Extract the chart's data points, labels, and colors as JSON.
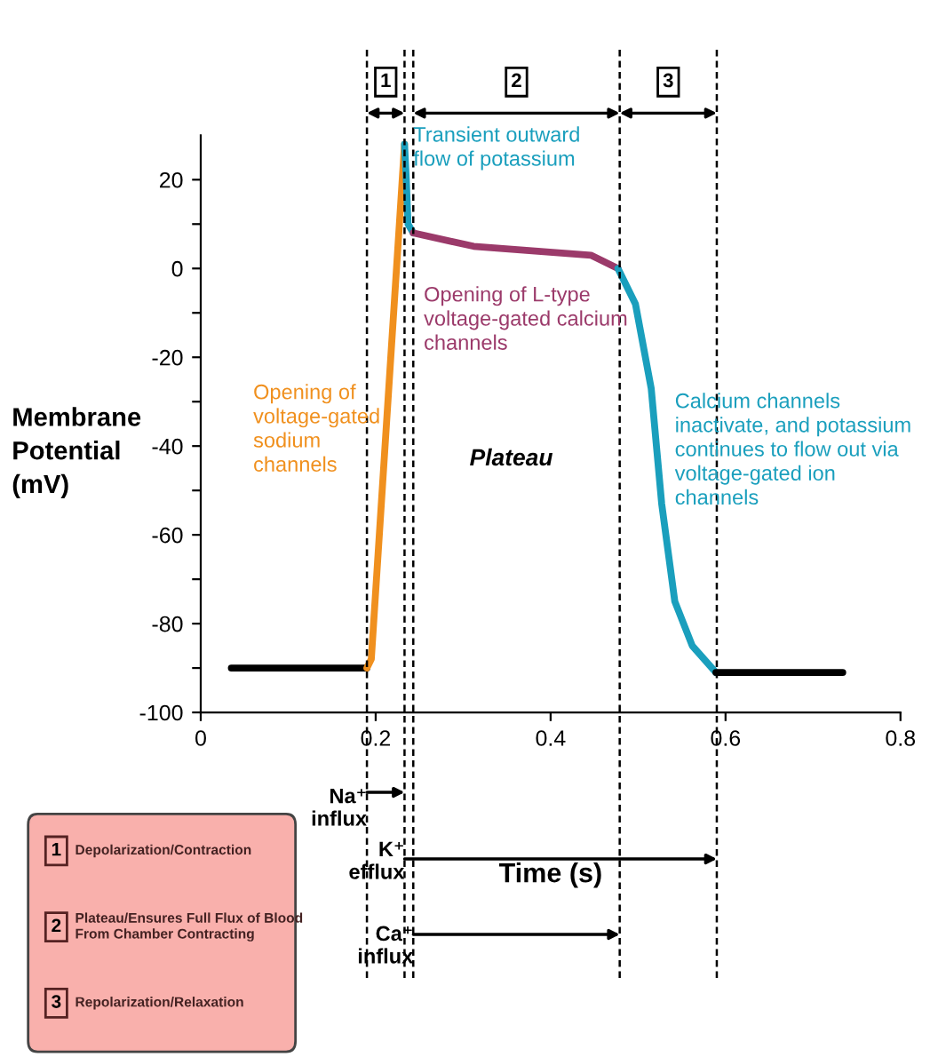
{
  "chart_data": {
    "type": "line",
    "xlabel": "Time (s)",
    "ylabel": "Membrane\nPotential\n(mV)",
    "xlim": [
      0,
      0.8
    ],
    "xticks": [
      0,
      0.2,
      0.4,
      0.6,
      0.8
    ],
    "ylim": [
      -100,
      30
    ],
    "yticks": [
      -100,
      {
        "value": -90,
        "label": null
      },
      -80,
      {
        "value": -70,
        "label": null
      },
      -60,
      {
        "value": -50,
        "label": null
      },
      -40,
      {
        "value": -30,
        "label": null
      },
      -20,
      {
        "value": -10,
        "label": null
      },
      0,
      {
        "value": 10,
        "label": null
      },
      20
    ],
    "series": [
      {
        "color": "#000000",
        "x": [
          0.035,
          0.19
        ],
        "values": [
          -90,
          -90
        ]
      },
      {
        "color": "#f0901e",
        "x": [
          0.19,
          0.195,
          0.233
        ],
        "values": [
          -90,
          -88,
          28
        ]
      },
      {
        "color": "#1a9fbd",
        "x": [
          0.233,
          0.235,
          0.237,
          0.243
        ],
        "values": [
          28,
          20,
          10,
          8
        ]
      },
      {
        "color": "#9b3a6a",
        "x": [
          0.243,
          0.312,
          0.379,
          0.446,
          0.477
        ],
        "values": [
          8,
          5,
          4,
          3,
          0
        ]
      },
      {
        "color": "#1a9fbd",
        "x": [
          0.477,
          0.497,
          0.515,
          0.527,
          0.542,
          0.562,
          0.589
        ],
        "values": [
          0,
          -8,
          -27,
          -53,
          -75,
          -85,
          -91
        ]
      },
      {
        "color": "#000000",
        "x": [
          0.589,
          0.734
        ],
        "values": [
          -91,
          -91
        ]
      }
    ],
    "ref_lines": [
      {
        "axis": "x",
        "value": 0.19,
        "line_style": "dashed"
      },
      {
        "axis": "x",
        "value": 0.233,
        "line_style": "dashed"
      },
      {
        "axis": "x",
        "value": 0.243,
        "line_style": "dashed"
      },
      {
        "axis": "x",
        "value": 0.479,
        "line_style": "dashed"
      },
      {
        "axis": "x",
        "value": 0.59,
        "line_style": "dashed"
      }
    ],
    "annotations": [
      "1",
      "2",
      "3",
      {
        "text": "Transient outward\nflow of potassium",
        "x": 0.243,
        "y": 32
      },
      "Opening of L-type\nvoltage-gated calcium\nchannels",
      "Opening of\nvoltage-gated\nsodium\nchannels",
      "Plateau",
      "Calcium channels\ninactivate, and potassium\ncontinues to flow out via\nvoltage-gated ion\nchannels",
      {
        "text": "Na⁺\ninflux",
        "x": 0.19,
        "y": -117
      },
      {
        "text": "K⁺\nefflux",
        "x": 0.233,
        "y": -129
      },
      {
        "text": "Ca⁺\ninflux",
        "x": 0.243,
        "y": -148
      },
      "1 Depolarization/Contraction",
      "2 Plateau/Ensures Full Flux of Blood\nFrom Chamber Contracting",
      "3 Repolarization/Relaxation"
    ]
  }
}
